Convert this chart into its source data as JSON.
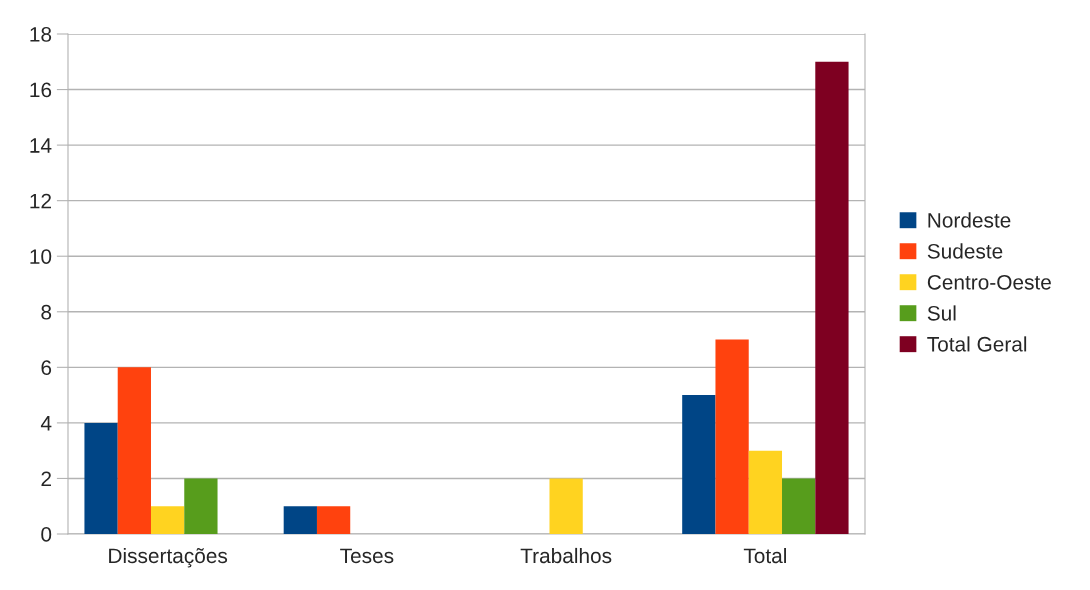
{
  "chart_data": {
    "type": "bar",
    "categories": [
      "Dissertações",
      "Teses",
      "Trabalhos",
      "Total"
    ],
    "series": [
      {
        "name": "Nordeste",
        "color": "#004586",
        "values": [
          4,
          1,
          null,
          5
        ]
      },
      {
        "name": "Sudeste",
        "color": "#ff420e",
        "values": [
          6,
          1,
          null,
          7
        ]
      },
      {
        "name": "Centro-Oeste",
        "color": "#ffd320",
        "values": [
          1,
          null,
          2,
          3
        ]
      },
      {
        "name": "Sul",
        "color": "#579d1c",
        "values": [
          2,
          null,
          null,
          2
        ]
      },
      {
        "name": "Total Geral",
        "color": "#7e0021",
        "values": [
          null,
          null,
          null,
          17
        ]
      }
    ],
    "ylim": [
      0,
      18
    ],
    "yticks": [
      0,
      2,
      4,
      6,
      8,
      10,
      12,
      14,
      16,
      18
    ],
    "grid": "y",
    "legend": "right"
  }
}
